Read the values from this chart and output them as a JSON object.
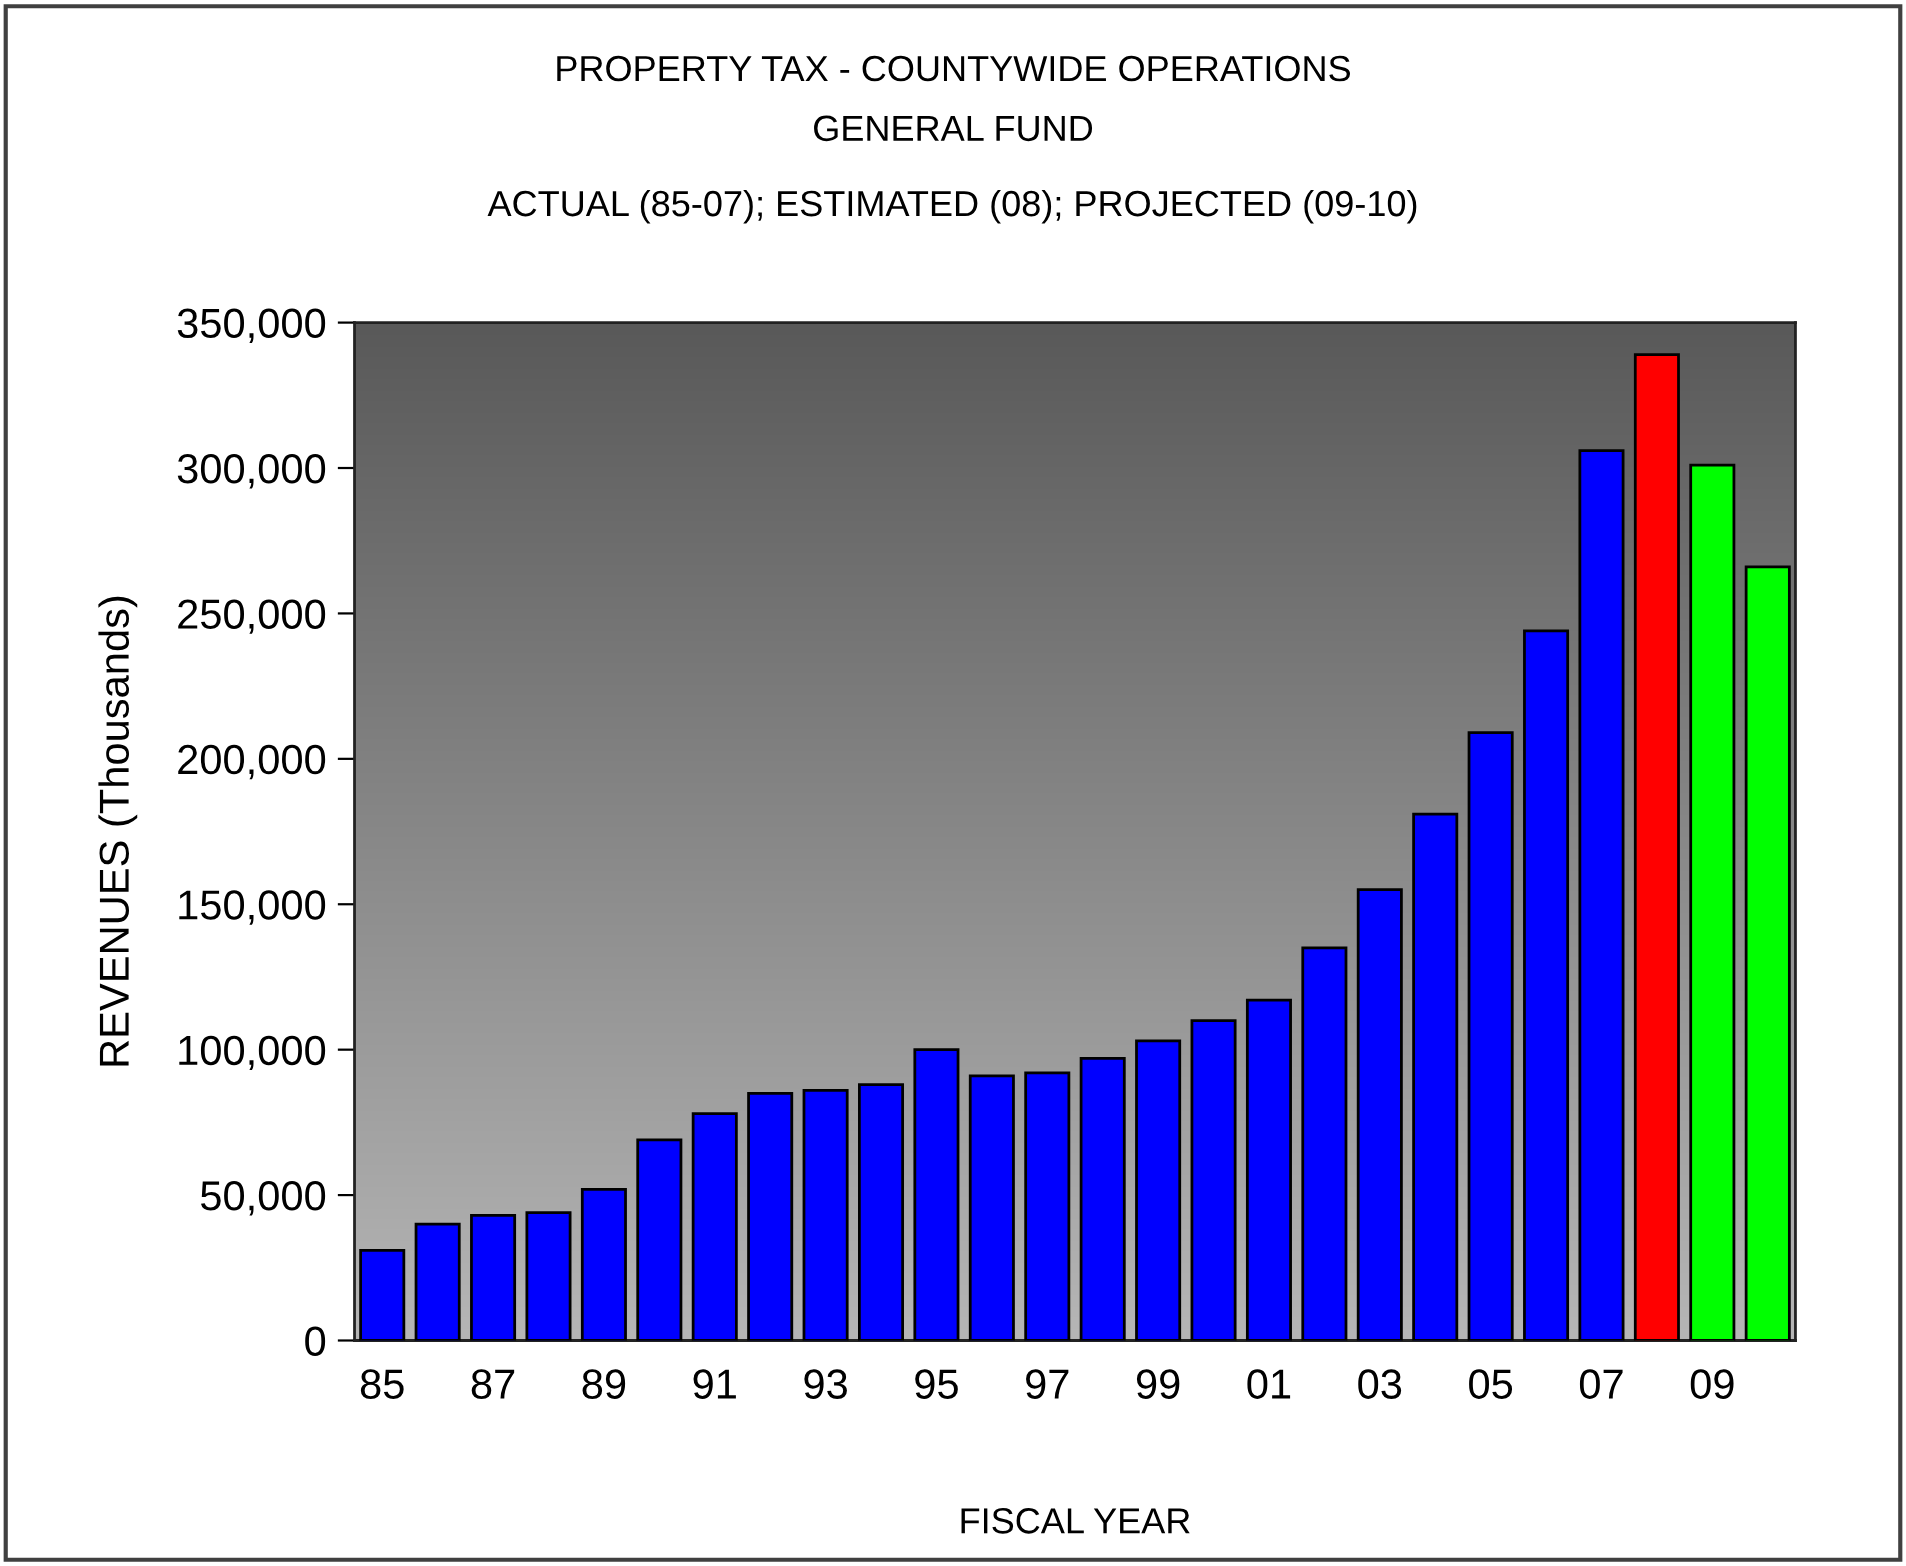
{
  "chart_data": {
    "type": "bar",
    "title": "PROPERTY TAX - COUNTYWIDE OPERATIONS\nGENERAL FUND",
    "subtitle": "ACTUAL (85-07); ESTIMATED (08); PROJECTED (09-10)",
    "xlabel": "FISCAL YEAR",
    "ylabel": "REVENUES (Thousands)",
    "categories": [
      "85",
      null,
      "87",
      null,
      "89",
      null,
      "91",
      null,
      "93",
      null,
      "95",
      null,
      "97",
      null,
      "99",
      null,
      "01",
      null,
      "03",
      null,
      "05",
      null,
      "07",
      null,
      "09",
      null
    ],
    "values": [
      31000,
      40000,
      43000,
      44000,
      52000,
      69000,
      78000,
      85000,
      86000,
      88000,
      100000,
      91000,
      92000,
      97000,
      103000,
      110000,
      117000,
      135000,
      155000,
      181000,
      209000,
      244000,
      306000,
      339000,
      301000,
      266000
    ],
    "colors": [
      "#0000ff",
      "#0000ff",
      "#0000ff",
      "#0000ff",
      "#0000ff",
      "#0000ff",
      "#0000ff",
      "#0000ff",
      "#0000ff",
      "#0000ff",
      "#0000ff",
      "#0000ff",
      "#0000ff",
      "#0000ff",
      "#0000ff",
      "#0000ff",
      "#0000ff",
      "#0000ff",
      "#0000ff",
      "#0000ff",
      "#0000ff",
      "#0000ff",
      "#0000ff",
      "#ff0000",
      "#00ff00",
      "#00ff00"
    ],
    "ylim": [
      0,
      350000
    ],
    "yticks": [
      0,
      {
        "value": 50000,
        "label": "50,000"
      },
      {
        "value": 100000,
        "label": "100,000"
      },
      {
        "value": 150000,
        "label": "150,000"
      },
      {
        "value": 200000,
        "label": "200,000"
      },
      {
        "value": 250000,
        "label": "250,000"
      },
      {
        "value": 300000,
        "label": "300,000"
      },
      {
        "value": 350000,
        "label": "350,000"
      }
    ]
  }
}
